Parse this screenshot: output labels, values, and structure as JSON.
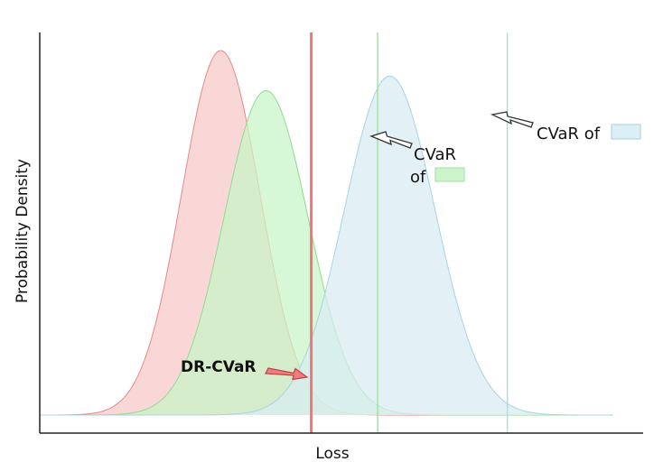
{
  "chart_data": {
    "type": "area",
    "title": "",
    "xlabel": "Loss",
    "ylabel": "Probability Density",
    "xlim": [
      0,
      100
    ],
    "ylim": [
      0,
      1.0
    ],
    "grid": false,
    "series": [
      {
        "mean": 30,
        "sd": 6.5,
        "peak": 1.0,
        "fill": "#f8c8c8",
        "stroke": "#e88888"
      },
      {
        "mean": 37.5,
        "sd": 7,
        "peak": 0.89,
        "fill": "#c8f5c8",
        "stroke": "#8fdc8f"
      },
      {
        "mean": 58,
        "sd": 7.5,
        "peak": 0.93,
        "fill": "#d8ebf3",
        "stroke": "#a8d3e3"
      }
    ],
    "vlines": [
      {
        "x": 45,
        "color": "#ee7777",
        "label": "DR-CVaR"
      },
      {
        "x": 56,
        "color": "#99dd99",
        "label": "CVaR of"
      },
      {
        "x": 77.5,
        "color": "#a8dcd8",
        "label": "CVaR of"
      }
    ],
    "annotations": {
      "dr_cvar": "DR-CVaR",
      "cvar_green_line1": "CVaR",
      "cvar_green_line2": "of",
      "cvar_blue": "CVaR of"
    },
    "colors": {
      "axis": "#222222",
      "arrow_red_fill": "#f07d7d",
      "arrow_outline": "#333333",
      "swatch_green_fill": "#ccf5cc",
      "swatch_green_stroke": "#9fe09f",
      "swatch_blue_fill": "#dceef6",
      "swatch_blue_stroke": "#a8cfe0"
    }
  }
}
